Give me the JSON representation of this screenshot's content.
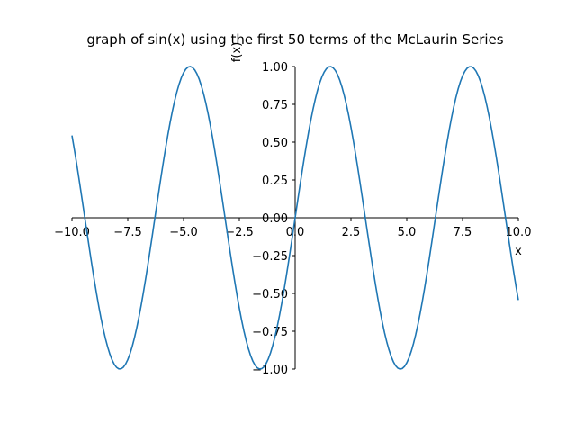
{
  "chart_data": {
    "type": "line",
    "title": "graph of sin(x) using the first 50 terms of the McLaurin Series",
    "xlabel": "x",
    "ylabel": "f(x)",
    "xlim": [
      -10.0,
      10.0
    ],
    "ylim": [
      -1.0,
      1.0
    ],
    "grid": false,
    "legend": "none",
    "x_ticks": [
      "−10.0",
      "−7.5",
      "−5.0",
      "−2.5",
      "0.0",
      "2.5",
      "5.0",
      "7.5",
      "10.0"
    ],
    "y_ticks": [
      "−1.00",
      "−0.75",
      "−0.50",
      "−0.25",
      "0.00",
      "0.25",
      "0.50",
      "0.75",
      "1.00"
    ],
    "series": [
      {
        "function": "sin(x)",
        "terms": 50,
        "samples": 200,
        "color": "#1f77b4"
      }
    ]
  }
}
